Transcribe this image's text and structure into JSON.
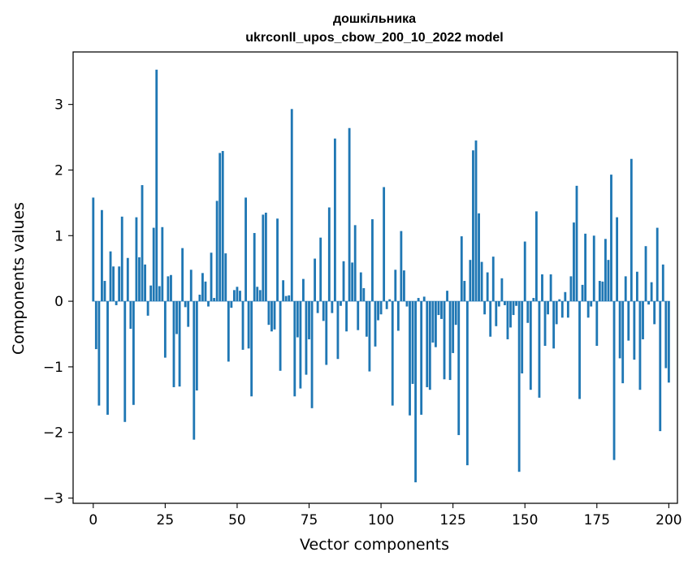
{
  "chart_data": {
    "type": "bar",
    "title": "дошкільника",
    "subtitle": "ukrconll_upos_cbow_200_10_2022 model",
    "xlabel": "Vector components",
    "ylabel": "Components values",
    "xlim": [
      -7,
      203
    ],
    "ylim": [
      -3.08,
      3.8
    ],
    "xticks": [
      0,
      25,
      50,
      75,
      100,
      125,
      150,
      175,
      200
    ],
    "xtick_labels": [
      "0",
      "25",
      "50",
      "75",
      "100",
      "125",
      "150",
      "175",
      "200"
    ],
    "yticks": [
      -3,
      -2,
      -1,
      0,
      1,
      2,
      3
    ],
    "ytick_labels": [
      "−3",
      "−2",
      "−1",
      "0",
      "1",
      "2",
      "3"
    ],
    "bar_color": "#1f77b4",
    "grid": false,
    "legend": "none",
    "values": [
      1.58,
      -0.73,
      -1.59,
      1.39,
      0.31,
      -1.73,
      0.76,
      0.53,
      -0.06,
      0.53,
      1.29,
      -1.84,
      0.66,
      -0.42,
      -1.58,
      1.28,
      0.67,
      1.77,
      0.56,
      -0.22,
      0.24,
      1.12,
      3.53,
      0.23,
      1.13,
      -0.86,
      0.38,
      0.4,
      -1.31,
      -0.5,
      -1.3,
      0.81,
      -0.09,
      -0.39,
      0.48,
      -2.11,
      -1.36,
      0.1,
      0.43,
      0.3,
      -0.08,
      0.74,
      0.05,
      1.53,
      2.26,
      2.29,
      0.73,
      -0.92,
      -0.1,
      0.17,
      0.22,
      0.16,
      -0.74,
      1.58,
      -0.72,
      -1.45,
      1.04,
      0.22,
      0.17,
      1.32,
      1.35,
      -0.36,
      -0.46,
      -0.43,
      1.26,
      -1.06,
      0.32,
      0.08,
      0.09,
      2.93,
      -1.45,
      -0.55,
      -1.33,
      0.34,
      -1.12,
      -0.58,
      -1.63,
      0.65,
      -0.18,
      0.97,
      -0.3,
      -0.97,
      1.43,
      -0.18,
      2.48,
      -0.88,
      -0.07,
      0.61,
      -0.46,
      2.64,
      0.59,
      1.16,
      -0.44,
      0.44,
      0.2,
      -0.54,
      -1.07,
      1.25,
      -0.69,
      -0.29,
      -0.2,
      1.74,
      -0.12,
      0.03,
      -1.59,
      0.48,
      -0.45,
      1.07,
      0.47,
      -0.08,
      -1.74,
      -1.26,
      -2.76,
      0.05,
      -1.73,
      0.07,
      -1.31,
      -1.35,
      -0.63,
      -0.7,
      -0.21,
      -0.27,
      -1.19,
      0.16,
      -1.2,
      -0.79,
      -0.36,
      -2.04,
      0.99,
      0.31,
      -2.5,
      0.63,
      2.3,
      2.45,
      1.34,
      0.6,
      -0.2,
      0.44,
      -0.54,
      0.68,
      -0.38,
      -0.08,
      0.35,
      -0.06,
      -0.58,
      -0.4,
      -0.21,
      -0.07,
      -2.6,
      -1.1,
      0.91,
      -0.33,
      -1.35,
      0.05,
      1.37,
      -1.47,
      0.41,
      -0.68,
      -0.2,
      0.41,
      -0.72,
      -0.35,
      0.03,
      -0.25,
      0.14,
      -0.25,
      0.38,
      1.2,
      1.76,
      -1.49,
      0.25,
      1.03,
      -0.25,
      -0.08,
      1.0,
      -0.68,
      0.31,
      0.3,
      0.95,
      0.63,
      1.93,
      -2.42,
      1.28,
      -0.87,
      -1.25,
      0.38,
      -0.6,
      2.17,
      -0.89,
      0.45,
      -1.35,
      -0.58,
      0.84,
      -0.05,
      0.29,
      -0.35,
      1.12,
      -1.98,
      0.56,
      -1.02,
      -1.24
    ]
  }
}
